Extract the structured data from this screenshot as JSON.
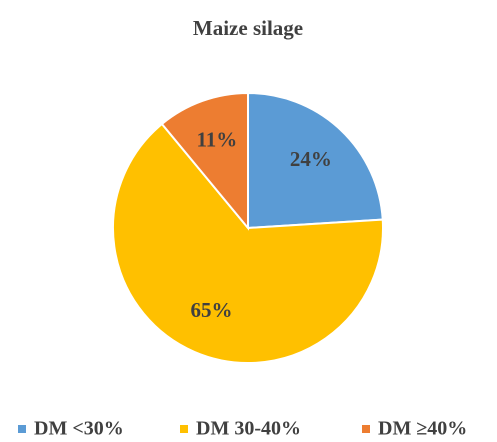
{
  "chart_data": {
    "type": "pie",
    "title": "Maize silage",
    "categories": [
      "DM <30%",
      "DM 30-40%",
      "DM ≥40%"
    ],
    "values": [
      24,
      65,
      11
    ],
    "value_labels": [
      "24%",
      "65%",
      "11%"
    ],
    "colors": [
      "#5b9bd5",
      "#ffc000",
      "#ed7d31"
    ],
    "legend": "bottom"
  }
}
